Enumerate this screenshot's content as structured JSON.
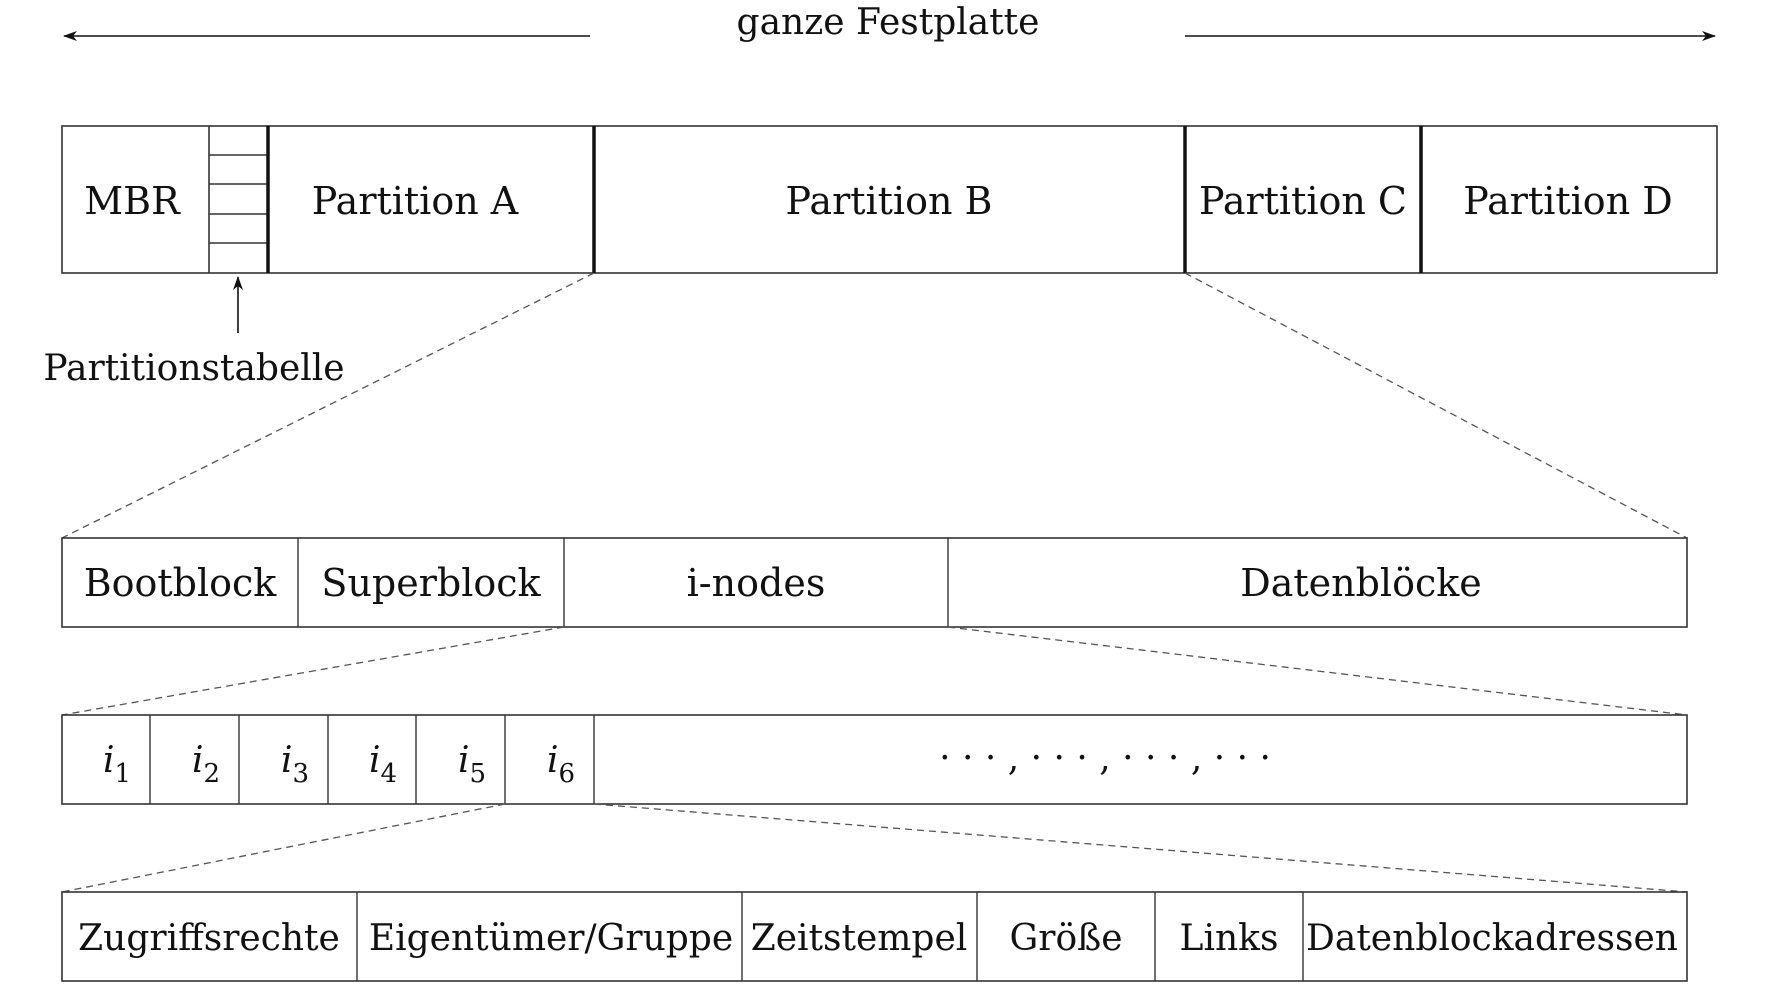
{
  "disk": {
    "label": "ganze Festplatte",
    "mbr": "MBR",
    "partition_table_label": "Partitionstabelle",
    "partitions": [
      "Partition A",
      "Partition B",
      "Partition C",
      "Partition D"
    ]
  },
  "filesystem": {
    "blocks": [
      "Bootblock",
      "Superblock",
      "i-nodes",
      "Datenblöcke"
    ]
  },
  "inodes": {
    "items": [
      "1",
      "2",
      "3",
      "4",
      "5",
      "6"
    ],
    "rest": "· · · , · · · , · · · , · · ·"
  },
  "inode_fields": [
    "Zugriffsrechte",
    "Eigentümer/Gruppe",
    "Zeitstempel",
    "Größe",
    "Links",
    "Datenblockadressen"
  ]
}
